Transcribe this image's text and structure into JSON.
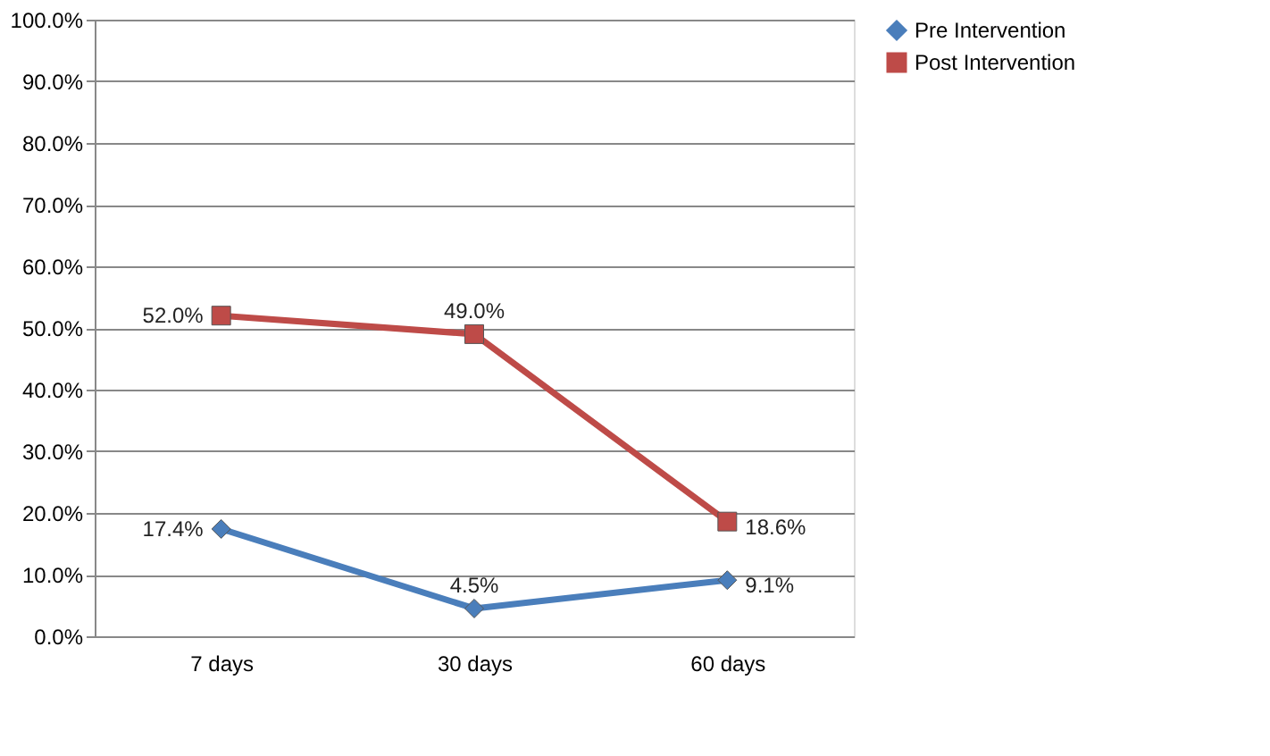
{
  "chart_data": {
    "type": "line",
    "categories": [
      "7 days",
      "30 days",
      "60 days"
    ],
    "series": [
      {
        "name": "Pre Intervention",
        "color": "#4a7ebb",
        "marker": "diamond",
        "values": [
          17.4,
          4.5,
          9.1
        ],
        "value_labels": [
          "17.4%",
          "4.5%",
          "9.1%"
        ]
      },
      {
        "name": "Post Intervention",
        "color": "#be4b48",
        "marker": "square",
        "values": [
          52.0,
          49.0,
          18.6
        ],
        "value_labels": [
          "52.0%",
          "49.0%",
          "18.6%"
        ]
      }
    ],
    "ylim": [
      0,
      100
    ],
    "yticks": [
      {
        "value": 0,
        "label": "0.0%"
      },
      {
        "value": 10,
        "label": "10.0%"
      },
      {
        "value": 20,
        "label": "20.0%"
      },
      {
        "value": 30,
        "label": "30.0%"
      },
      {
        "value": 40,
        "label": "40.0%"
      },
      {
        "value": 50,
        "label": "50.0%"
      },
      {
        "value": 60,
        "label": "60.0%"
      },
      {
        "value": 70,
        "label": "70.0%"
      },
      {
        "value": 80,
        "label": "80.0%"
      },
      {
        "value": 90,
        "label": "90.0%"
      },
      {
        "value": 100,
        "label": "100.0%"
      }
    ],
    "grid": "y",
    "legend": "right",
    "line_style": "solid"
  }
}
